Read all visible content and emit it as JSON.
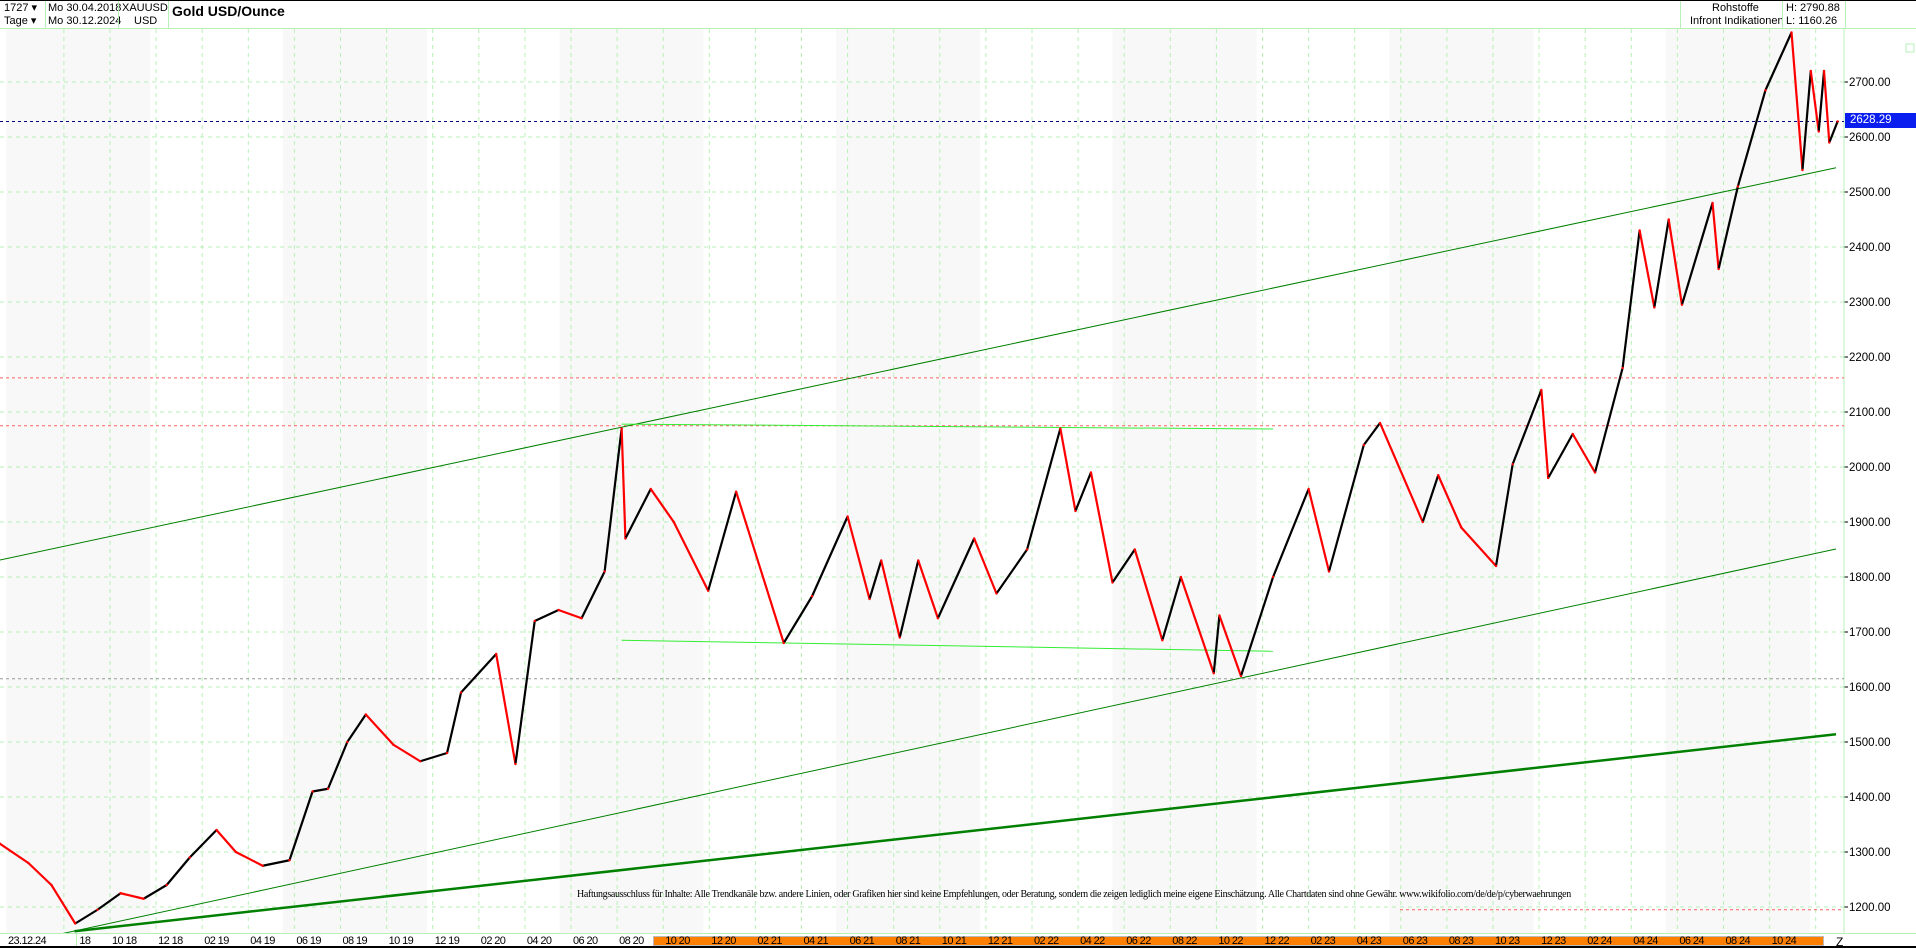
{
  "header": {
    "count": "1727",
    "period": "Tage",
    "date_from": "Mo 30.04.2018",
    "date_to": "Mo 30.12.2024",
    "symbol": "XAUUSD",
    "currency": "USD",
    "title": "Gold USD/Ounce",
    "category": "Rohstoffe",
    "source": "Infront Indikationen",
    "high": "H: 2790.88",
    "low": "L: 1160.26"
  },
  "current_price_label": "2628.29",
  "disclaimer": "Haftungsausschluss für Inhalte: Alle Trendkanäle bzw. andere Linien, oder Grafiken hier sind keine Empfehlungen, oder Beratung, sondern die zeigen lediglich meine eigene Einschätzung. Alle Chartdaten sind ohne Gewähr.  www.wikifolio.com/de/de/p/cyberwaehrungen",
  "x_axis": {
    "cursor_date": "23.12.24",
    "end_label": "Z",
    "labels": [
      "08 18",
      "10 18",
      "12 18",
      "02 19",
      "04 19",
      "06 19",
      "08 19",
      "10 19",
      "12 19",
      "02 20",
      "04 20",
      "06 20",
      "08 20",
      "10 20",
      "12 20",
      "02 21",
      "04 21",
      "06 21",
      "08 21",
      "10 21",
      "12 21",
      "02 22",
      "04 22",
      "06 22",
      "08 22",
      "10 22",
      "12 22",
      "02 23",
      "04 23",
      "06 23",
      "08 23",
      "10 23",
      "12 23",
      "02 24",
      "04 24",
      "06 24",
      "08 24",
      "10 24"
    ]
  },
  "colors": {
    "up": "#000000",
    "down": "#ff0000",
    "grid": "#b8f0b8",
    "trend": "#008000",
    "bright_trend": "#33ee33",
    "price_tag": "#0a1ef0",
    "highlight_bar": "#ff8000"
  },
  "chart_data": {
    "type": "line",
    "title": "Gold USD/Ounce",
    "x_range": [
      "2018-04-30",
      "2024-12-30"
    ],
    "ylim": [
      1150,
      2800
    ],
    "yticks": [
      "1200.00",
      "1300.00",
      "1400.00",
      "1500.00",
      "1600.00",
      "1700.00",
      "1800.00",
      "1900.00",
      "2000.00",
      "2100.00",
      "2200.00",
      "2300.00",
      "2400.00",
      "2500.00",
      "2600.00",
      "2700.00"
    ],
    "grid": true,
    "series": [
      {
        "x": [
          "2018-05-01",
          "2018-06-15",
          "2018-07-15",
          "2018-08-16",
          "2018-09-15",
          "2018-10-15",
          "2018-11-15",
          "2018-12-15",
          "2019-01-15",
          "2019-02-20",
          "2019-03-15",
          "2019-04-20",
          "2019-05-25",
          "2019-06-25",
          "2019-07-15",
          "2019-08-10",
          "2019-09-04",
          "2019-10-10",
          "2019-11-15",
          "2019-12-20",
          "2020-01-08",
          "2020-02-24",
          "2020-03-19",
          "2020-04-14",
          "2020-05-15",
          "2020-06-15",
          "2020-07-15",
          "2020-08-07",
          "2020-08-12",
          "2020-09-15",
          "2020-10-15",
          "2020-11-30",
          "2021-01-06",
          "2021-03-08",
          "2021-04-15",
          "2021-06-01",
          "2021-06-30",
          "2021-07-15",
          "2021-08-09",
          "2021-09-03",
          "2021-09-29",
          "2021-11-16",
          "2021-12-15",
          "2022-01-25",
          "2022-03-08",
          "2022-03-28",
          "2022-04-18",
          "2022-05-16",
          "2022-06-15",
          "2022-07-21",
          "2022-08-15",
          "2022-09-28",
          "2022-10-05",
          "2022-11-03",
          "2022-12-15",
          "2023-02-01",
          "2023-02-28",
          "2023-04-13",
          "2023-05-04",
          "2023-06-30",
          "2023-07-20",
          "2023-08-20",
          "2023-10-05",
          "2023-10-27",
          "2023-12-04",
          "2023-12-13",
          "2024-01-15",
          "2024-02-14",
          "2024-03-20",
          "2024-04-12",
          "2024-05-01",
          "2024-05-20",
          "2024-06-07",
          "2024-07-17",
          "2024-07-25",
          "2024-08-20",
          "2024-09-26",
          "2024-10-30",
          "2024-11-14",
          "2024-11-25",
          "2024-12-05",
          "2024-12-12",
          "2024-12-19",
          "2024-12-30"
        ],
        "y": [
          1315,
          1280,
          1240,
          1170,
          1195,
          1225,
          1215,
          1240,
          1290,
          1340,
          1300,
          1275,
          1285,
          1410,
          1415,
          1500,
          1550,
          1495,
          1465,
          1480,
          1590,
          1660,
          1460,
          1720,
          1740,
          1725,
          1810,
          2070,
          1870,
          1960,
          1900,
          1775,
          1955,
          1680,
          1765,
          1910,
          1760,
          1830,
          1690,
          1830,
          1725,
          1870,
          1770,
          1850,
          2070,
          1920,
          1990,
          1790,
          1850,
          1685,
          1800,
          1625,
          1730,
          1620,
          1800,
          1960,
          1810,
          2040,
          2080,
          1900,
          1985,
          1890,
          1820,
          2005,
          2140,
          1980,
          2060,
          1990,
          2180,
          2430,
          2290,
          2450,
          2295,
          2480,
          2360,
          2510,
          2685,
          2790,
          2540,
          2720,
          2610,
          2720,
          2590,
          2628.29
        ]
      }
    ],
    "horizontal_lines": [
      {
        "value": 2628.29,
        "style": "dashed",
        "color": "#000080"
      },
      {
        "value": 2162,
        "style": "dashed",
        "color": "#ff6060"
      },
      {
        "value": 2075,
        "style": "dashed",
        "color": "#ff6060"
      },
      {
        "value": 1615,
        "style": "dashed",
        "color": "#999999"
      },
      {
        "value": 1195,
        "style": "dashed",
        "color": "#ff6060"
      }
    ],
    "trend_lines": [
      {
        "from": [
          "2018-04-30",
          1831
        ],
        "to": [
          "2024-12-30",
          2544
        ],
        "color": "#008000",
        "weight": "thin"
      },
      {
        "from": [
          "2018-04-30",
          1127
        ],
        "to": [
          "2024-12-30",
          1851
        ],
        "color": "#008000",
        "weight": "thin"
      },
      {
        "from": [
          "2018-08-15",
          1156
        ],
        "to": [
          "2024-12-30",
          1514
        ],
        "color": "#008000",
        "weight": "thick"
      },
      {
        "from": [
          "2020-08-07",
          2078
        ],
        "to": [
          "2022-12-15",
          2069
        ],
        "color": "#33ee33",
        "weight": "thin"
      },
      {
        "from": [
          "2020-08-07",
          1685
        ],
        "to": [
          "2022-12-15",
          1665
        ],
        "color": "#33ee33",
        "weight": "thin"
      }
    ]
  }
}
